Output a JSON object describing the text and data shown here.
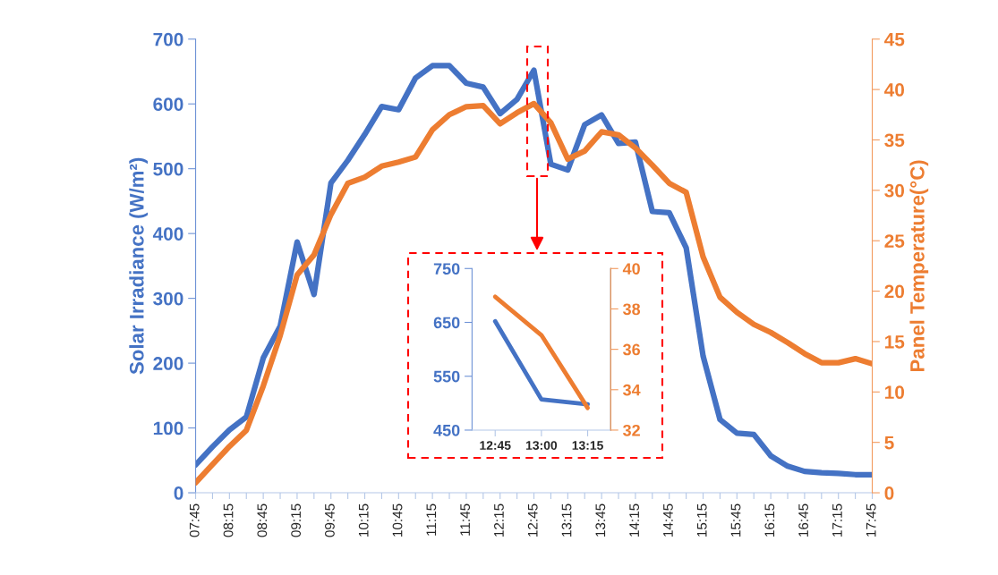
{
  "chart_data": [
    {
      "type": "line",
      "ylabel": "Solar Irradiance (W/m²)",
      "y2label": "Panel Temperature(°C)",
      "categories": [
        "07:45",
        null,
        "08:15",
        null,
        "08:45",
        null,
        "09:15",
        null,
        "09:45",
        null,
        "10:15",
        null,
        "10:45",
        null,
        "11:15",
        null,
        "11:45",
        null,
        "12:15",
        null,
        "12:45",
        null,
        "13:15",
        null,
        "13:45",
        null,
        "14:15",
        null,
        "14:45",
        null,
        "15:15",
        null,
        "15:45",
        null,
        "16:15",
        null,
        "16:45",
        null,
        "17:15",
        null,
        "17:45"
      ],
      "series": [
        {
          "color": "#4472c4",
          "values": [
            43,
            71,
            97,
            117,
            208,
            257,
            387,
            306,
            478,
            513,
            553,
            596,
            591,
            640,
            659,
            659,
            632,
            626,
            585,
            607,
            652,
            507,
            498,
            568,
            583,
            539,
            541,
            434,
            432,
            378,
            211,
            113,
            92,
            90,
            57,
            41,
            33,
            31,
            30,
            28,
            28
          ]
        },
        {
          "color": "#ed7d31",
          "axis": "y2",
          "values": [
            1.0,
            2.8,
            4.6,
            6.2,
            10.6,
            15.6,
            21.6,
            23.6,
            27.6,
            30.7,
            31.3,
            32.4,
            32.8,
            33.3,
            36.0,
            37.5,
            38.3,
            38.4,
            36.6,
            37.7,
            38.6,
            36.7,
            33.1,
            33.9,
            35.8,
            35.5,
            34.2,
            32.5,
            30.7,
            29.8,
            23.4,
            19.4,
            17.9,
            16.7,
            15.9,
            14.9,
            13.8,
            12.9,
            12.9,
            13.3,
            12.8
          ]
        }
      ],
      "ylim": [
        0,
        700
      ],
      "yticks": [
        0,
        100,
        200,
        300,
        400,
        500,
        600,
        700
      ],
      "y2lim": [
        0,
        45
      ],
      "y2ticks": [
        0,
        5,
        10,
        15,
        20,
        25,
        30,
        35,
        40,
        45
      ]
    },
    {
      "type": "line",
      "categories": [
        "12:45",
        "13:00",
        "13:15"
      ],
      "series": [
        {
          "color": "#4472c4",
          "values": [
            652,
            507,
            498
          ]
        },
        {
          "color": "#ed7d31",
          "axis": "y2",
          "values": [
            38.6,
            36.7,
            33.1
          ]
        }
      ],
      "ylim": [
        450,
        750
      ],
      "yticks": [
        450,
        550,
        650,
        750
      ],
      "y2lim": [
        32,
        40
      ],
      "y2ticks": [
        32,
        34,
        36,
        38,
        40
      ]
    }
  ]
}
